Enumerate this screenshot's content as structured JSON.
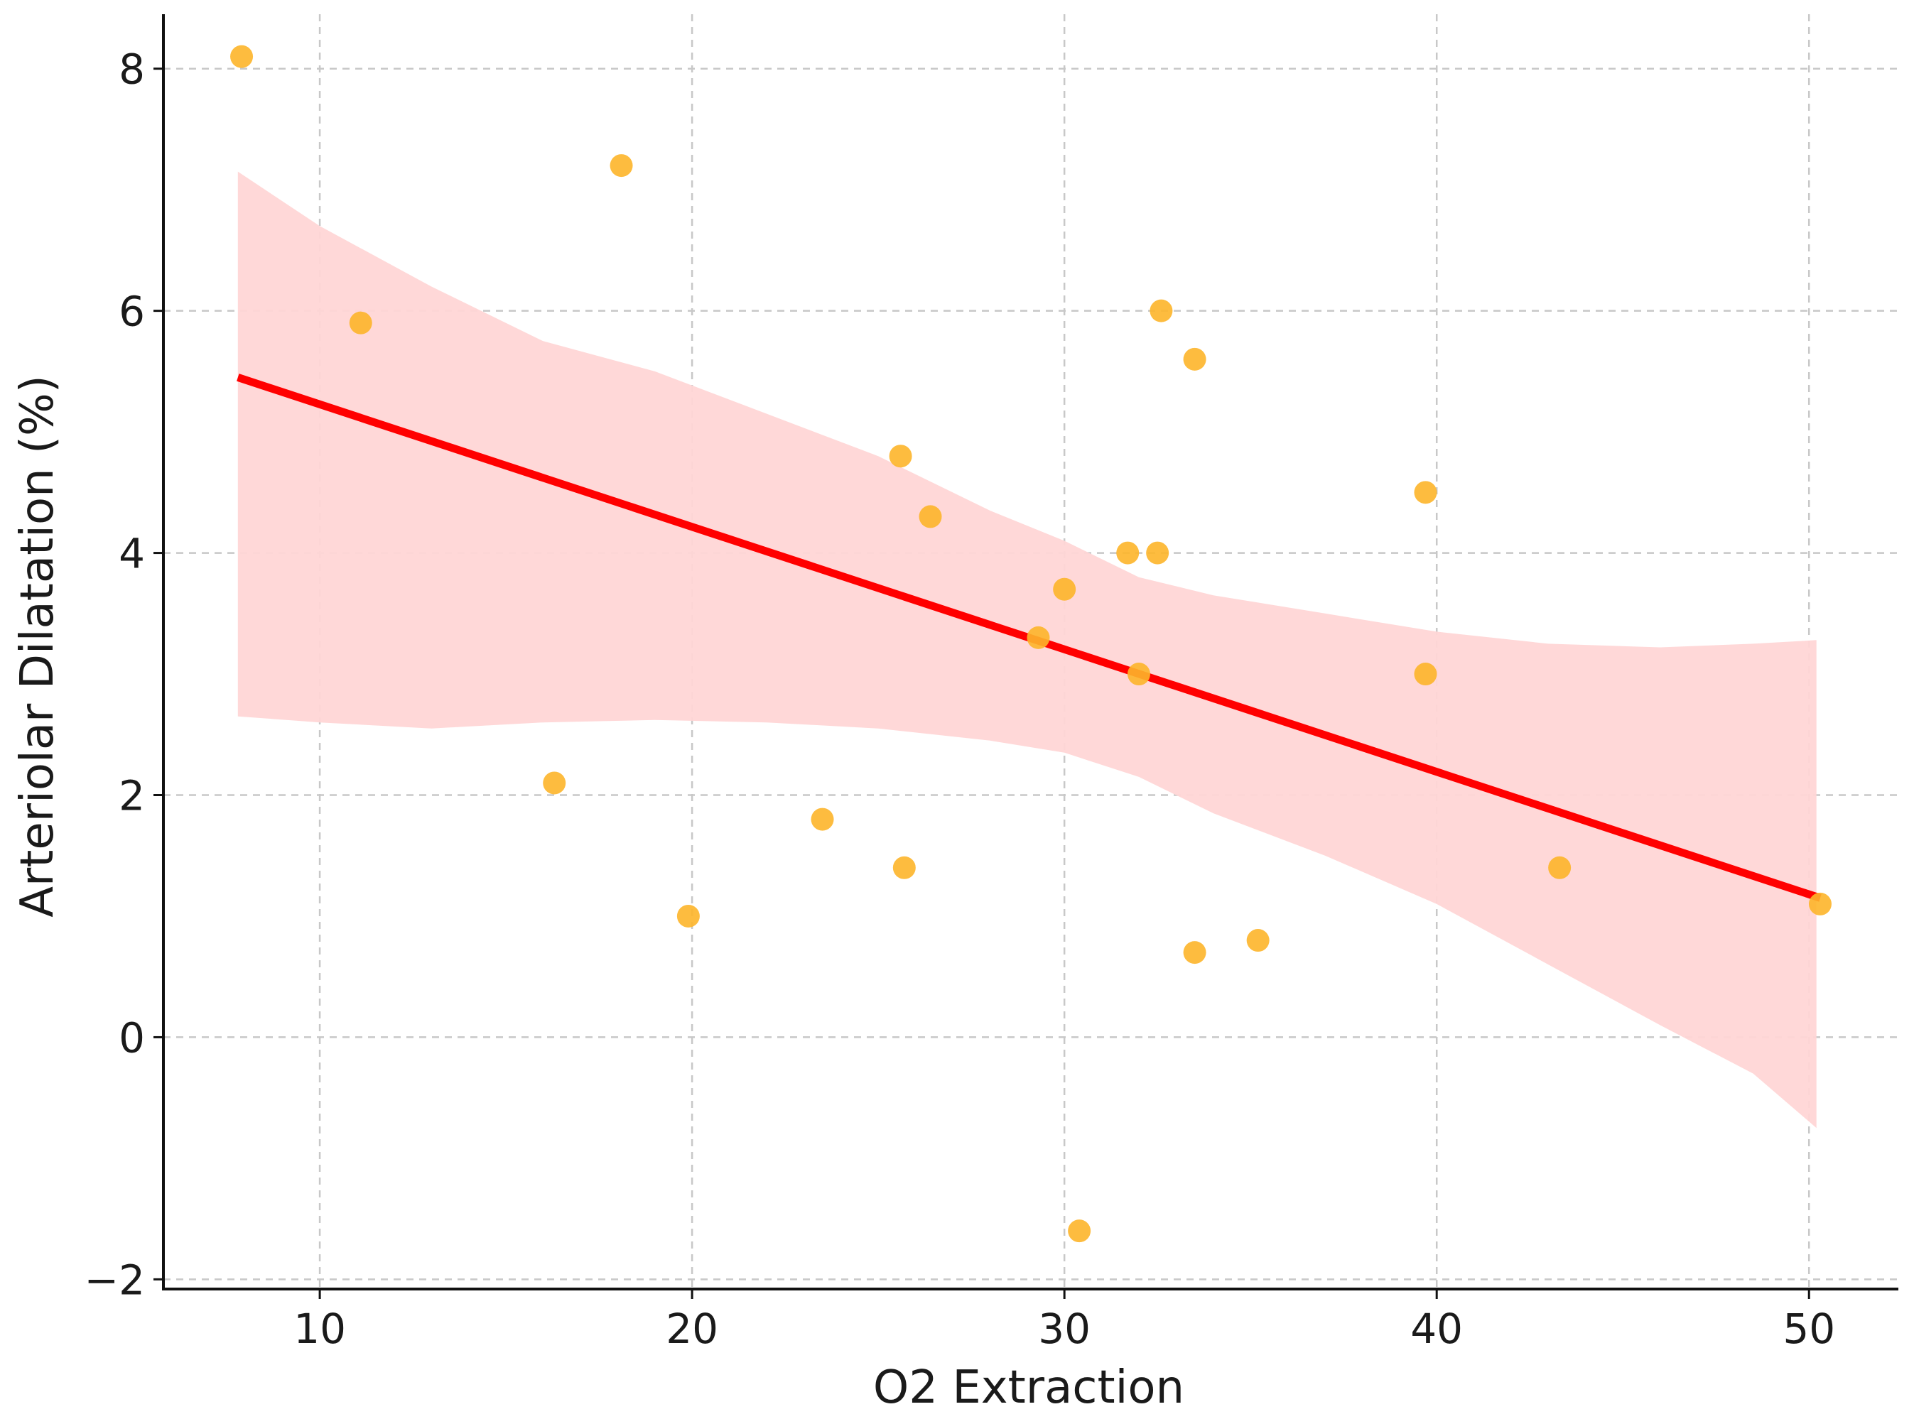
{
  "chart_data": {
    "type": "scatter",
    "title": "",
    "xlabel": "O2 Extraction",
    "ylabel": "Arteriolar Dilatation (%)",
    "xlim": [
      5.8,
      52.4
    ],
    "ylim": [
      -2.08,
      8.45
    ],
    "grid": true,
    "x_ticks": [
      10,
      20,
      30,
      40,
      50
    ],
    "x_tick_labels": [
      "10",
      "20",
      "30",
      "40",
      "50"
    ],
    "y_ticks": [
      -2,
      0,
      2,
      4,
      6,
      8
    ],
    "y_tick_labels": [
      "−2",
      "0",
      "2",
      "4",
      "6",
      "8"
    ],
    "series": [
      {
        "name": "observations",
        "kind": "points",
        "color": "#fdb52a",
        "points": [
          {
            "x": 7.9,
            "y": 8.1
          },
          {
            "x": 11.1,
            "y": 5.9
          },
          {
            "x": 16.3,
            "y": 2.1
          },
          {
            "x": 18.1,
            "y": 7.2
          },
          {
            "x": 19.9,
            "y": 1.0
          },
          {
            "x": 23.5,
            "y": 1.8
          },
          {
            "x": 25.6,
            "y": 4.8
          },
          {
            "x": 25.7,
            "y": 1.4
          },
          {
            "x": 26.4,
            "y": 4.3
          },
          {
            "x": 29.3,
            "y": 3.3
          },
          {
            "x": 30.0,
            "y": 3.7
          },
          {
            "x": 30.4,
            "y": -1.6
          },
          {
            "x": 31.7,
            "y": 4.0
          },
          {
            "x": 32.0,
            "y": 3.0
          },
          {
            "x": 32.5,
            "y": 4.0
          },
          {
            "x": 32.6,
            "y": 6.0
          },
          {
            "x": 33.5,
            "y": 5.6
          },
          {
            "x": 33.5,
            "y": 0.7
          },
          {
            "x": 35.2,
            "y": 0.8
          },
          {
            "x": 39.7,
            "y": 4.5
          },
          {
            "x": 39.7,
            "y": 3.0
          },
          {
            "x": 43.3,
            "y": 1.4
          },
          {
            "x": 50.3,
            "y": 1.1
          }
        ]
      },
      {
        "name": "regression fit",
        "kind": "line",
        "color": "#ff0000",
        "x": [
          7.8,
          50.3
        ],
        "y": [
          5.45,
          1.15
        ]
      },
      {
        "name": "confidence band",
        "kind": "band",
        "color": "#ffd6d6",
        "x": [
          7.8,
          10,
          13,
          16,
          19,
          22,
          25,
          28,
          30,
          32,
          34,
          37,
          40,
          43,
          46,
          48.5,
          50.2
        ],
        "upper": [
          7.15,
          6.7,
          6.2,
          5.75,
          5.5,
          5.15,
          4.8,
          4.35,
          4.1,
          3.8,
          3.65,
          3.5,
          3.35,
          3.25,
          3.22,
          3.25,
          3.28
        ],
        "lower": [
          2.65,
          2.6,
          2.55,
          2.6,
          2.62,
          2.6,
          2.55,
          2.45,
          2.35,
          2.15,
          1.85,
          1.5,
          1.1,
          0.6,
          0.1,
          -0.3,
          -0.75
        ]
      }
    ]
  }
}
